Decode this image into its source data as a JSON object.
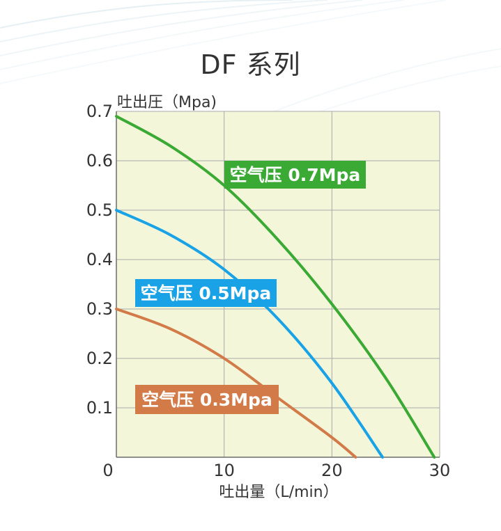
{
  "title": "DF 系列",
  "colors": {
    "plot_bg": "#f4f6d9",
    "grid": "#a9a9a9",
    "axis": "#6b6b6b",
    "text": "#333333",
    "series_07": "#3aaa35",
    "series_05": "#19a3e6",
    "series_03": "#d27a48"
  },
  "chart_data": {
    "type": "line",
    "title": "DF 系列",
    "ylabel": "吐出圧（Mpa)",
    "xlabel": "吐出量（L/min）",
    "xlim": [
      0,
      30
    ],
    "ylim": [
      0,
      0.7
    ],
    "x_ticks": [
      "0",
      "10",
      "20",
      "30"
    ],
    "y_ticks": [
      "0.1",
      "0.2",
      "0.3",
      "0.4",
      "0.5",
      "0.6",
      "0.7"
    ],
    "grid": true,
    "series": [
      {
        "name": "空气压 0.7Mpa",
        "color": "#3aaa35",
        "x": [
          0,
          5,
          10,
          15,
          20,
          25,
          29.5
        ],
        "y": [
          0.69,
          0.63,
          0.55,
          0.44,
          0.31,
          0.16,
          0.0
        ]
      },
      {
        "name": "空气压 0.5Mpa",
        "color": "#19a3e6",
        "x": [
          0,
          5,
          10,
          15,
          20,
          24.7
        ],
        "y": [
          0.5,
          0.45,
          0.38,
          0.28,
          0.15,
          0.0
        ]
      },
      {
        "name": "空气压 0.3Mpa",
        "color": "#d27a48",
        "x": [
          0,
          5,
          10,
          15,
          20,
          22.2
        ],
        "y": [
          0.3,
          0.26,
          0.2,
          0.12,
          0.04,
          0.0
        ]
      }
    ]
  }
}
